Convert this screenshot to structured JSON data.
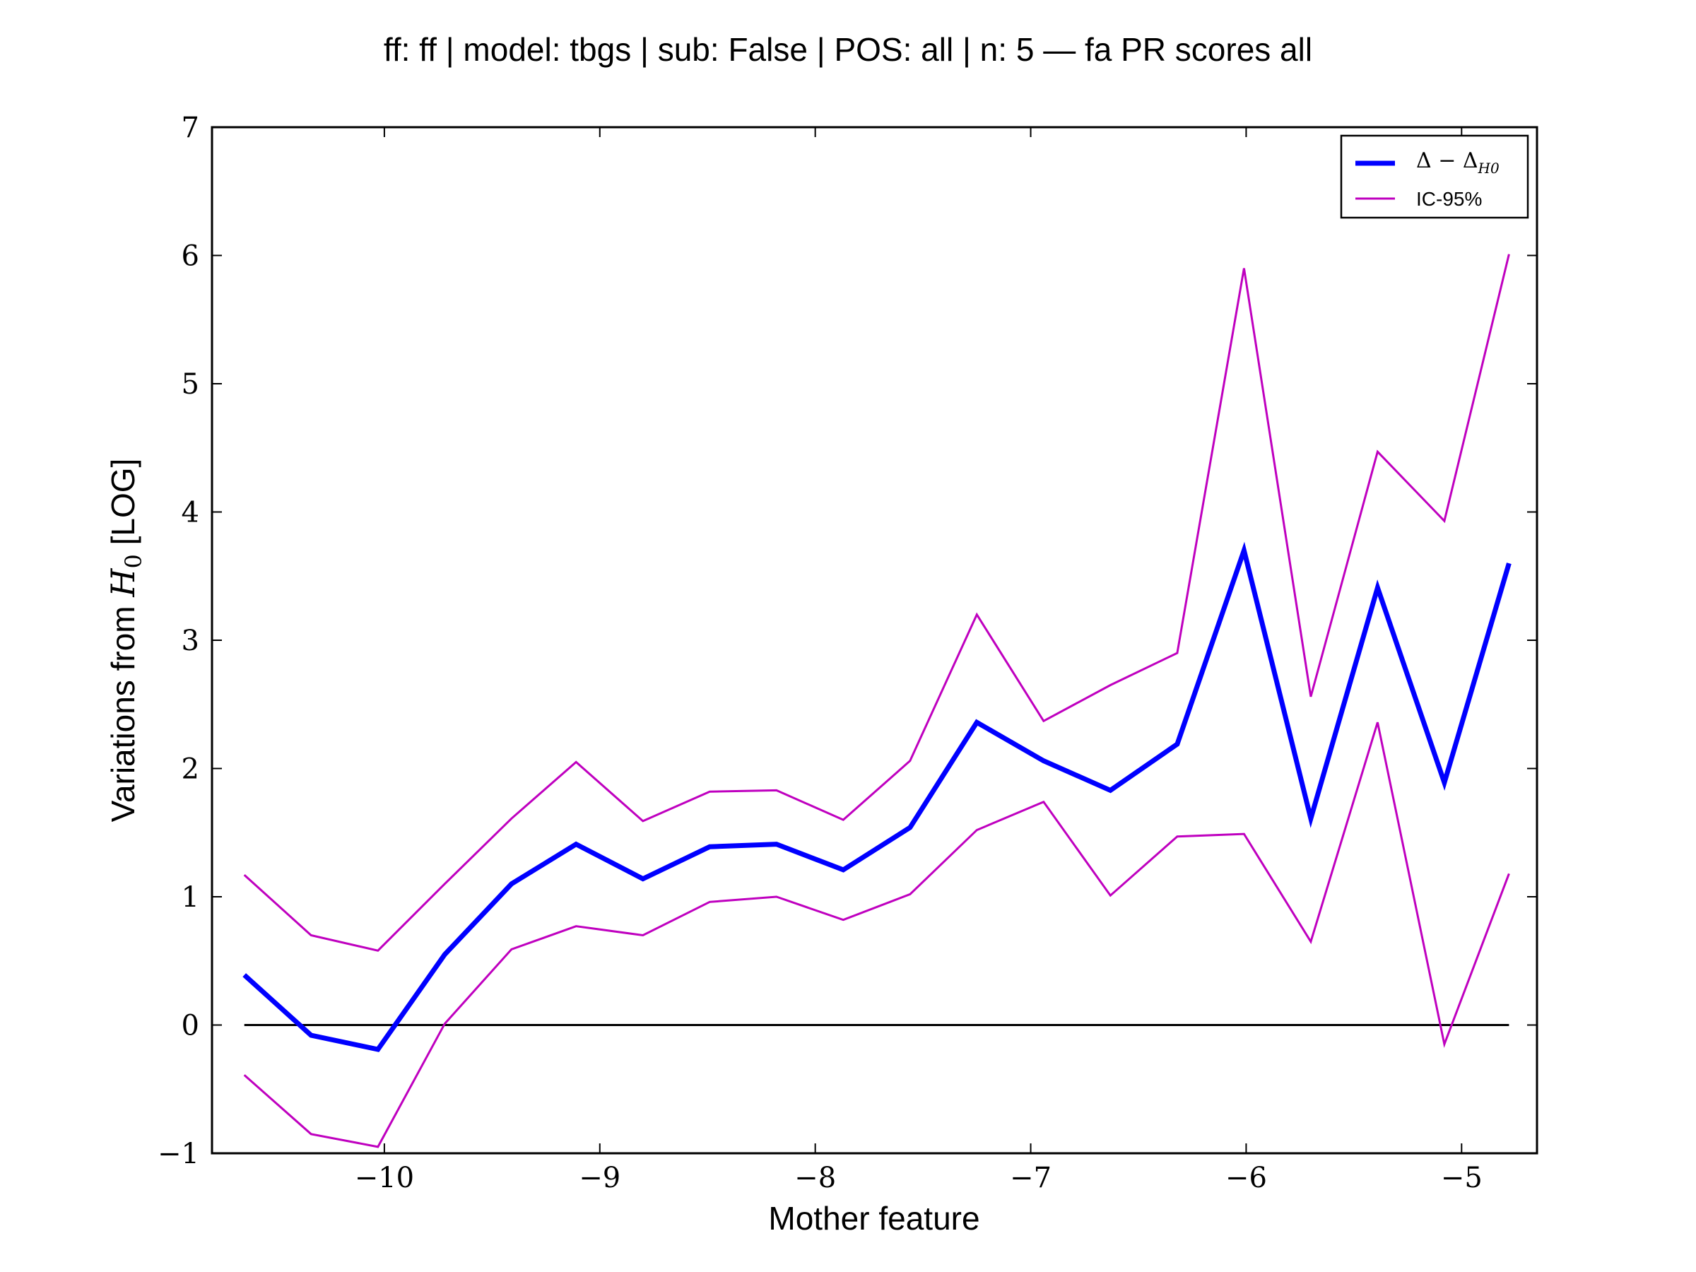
{
  "chart_data": {
    "type": "line",
    "title": "ff: ff | model: tbgs | sub: False | POS: all | n: 5 — fa PR scores all",
    "xlabel": "Mother feature",
    "ylabel_prefix": "Variations from ",
    "ylabel_symbol": "H",
    "ylabel_subscript": "0",
    "ylabel_suffix": " [LOG]",
    "xlim": [
      -10.8,
      -4.65
    ],
    "ylim": [
      -1,
      7
    ],
    "x_ticks": [
      -10,
      -9,
      -8,
      -7,
      -6,
      -5
    ],
    "x_tick_labels": [
      "−10",
      "−9",
      "−8",
      "−7",
      "−6",
      "−5"
    ],
    "y_ticks": [
      -1,
      0,
      1,
      2,
      3,
      4,
      5,
      6,
      7
    ],
    "y_tick_labels": [
      "−1",
      "0",
      "1",
      "2",
      "3",
      "4",
      "5",
      "6",
      "7"
    ],
    "grid": false,
    "legend_position": "top-right",
    "x": [
      -10.65,
      -10.34,
      -10.03,
      -9.72,
      -9.41,
      -9.11,
      -8.8,
      -8.49,
      -8.18,
      -7.87,
      -7.56,
      -7.25,
      -6.94,
      -6.63,
      -6.32,
      -6.01,
      -5.7,
      -5.39,
      -5.08,
      -4.78
    ],
    "series": [
      {
        "name": "Δ − Δ",
        "name_subscript": "H0",
        "role": "mean",
        "color": "#0000ff",
        "values": [
          0.39,
          -0.08,
          -0.19,
          0.55,
          1.1,
          1.41,
          1.14,
          1.39,
          1.41,
          1.21,
          1.54,
          2.36,
          2.06,
          1.83,
          2.19,
          3.7,
          1.61,
          3.41,
          1.89,
          3.6
        ]
      },
      {
        "name": "IC-95%",
        "role": "ci-upper",
        "color": "#bf00bf",
        "values": [
          1.17,
          0.7,
          0.58,
          1.1,
          1.61,
          2.05,
          1.59,
          1.82,
          1.83,
          1.6,
          2.06,
          3.2,
          2.37,
          2.65,
          2.9,
          5.9,
          2.56,
          4.47,
          3.93,
          6.01
        ]
      },
      {
        "name": "IC-95%",
        "role": "ci-lower",
        "color": "#bf00bf",
        "values": [
          -0.39,
          -0.85,
          -0.95,
          0.01,
          0.59,
          0.77,
          0.7,
          0.96,
          1.0,
          0.82,
          1.02,
          1.52,
          1.74,
          1.01,
          1.47,
          1.49,
          0.65,
          2.36,
          -0.15,
          1.18
        ]
      }
    ],
    "reference_line": {
      "y": 0,
      "color": "#000000"
    }
  }
}
